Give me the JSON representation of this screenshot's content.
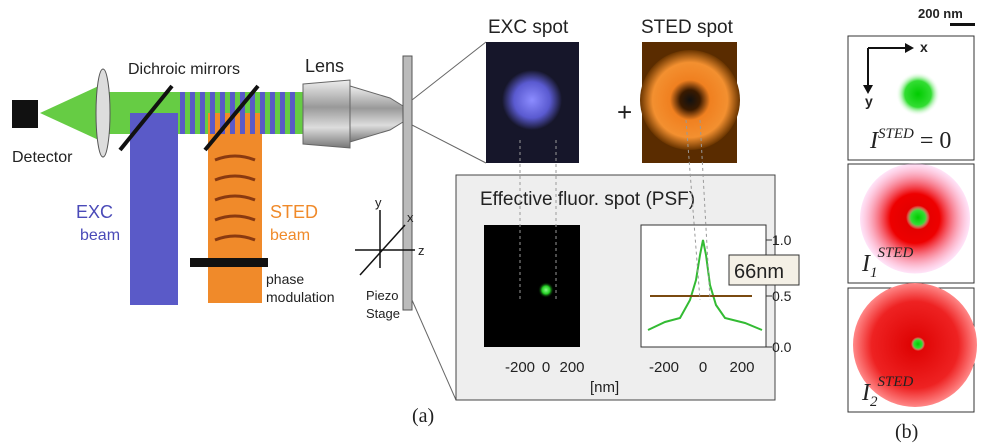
{
  "setup": {
    "detector": "Detector",
    "dichroic": "Dichroic mirrors",
    "lens": "Lens",
    "exc_beam": [
      "EXC",
      "beam"
    ],
    "sted_beam": [
      "STED",
      "beam"
    ],
    "phase": [
      "phase",
      "modulation"
    ],
    "axes": {
      "x": "x",
      "y": "y",
      "z": "z"
    },
    "stage": [
      "Piezo",
      "Stage"
    ]
  },
  "spots": {
    "exc": "EXC spot",
    "sted": "STED spot",
    "plus": "+"
  },
  "effective": {
    "title": "Effective fluor. spot (PSF)",
    "image_ticks": [
      "-200",
      "0",
      "200"
    ],
    "xlabel": "[nm]",
    "profile_xticks": [
      "-200",
      "0",
      "200"
    ],
    "profile_yticks": [
      "1.0",
      "0.5",
      "0.0"
    ],
    "fwhm": "66nm"
  },
  "panel_a": "(a)",
  "panel_b": {
    "scale": "200 nm",
    "x": "x",
    "y": "y",
    "labels": [
      {
        "base": "I",
        "sub": "",
        "sup": "STED",
        "rest": " = 0"
      },
      {
        "base": "I",
        "sub": "1",
        "sup": "STED",
        "rest": ""
      },
      {
        "base": "I",
        "sub": "2",
        "sup": "STED",
        "rest": ""
      }
    ],
    "label": "(b)"
  }
}
